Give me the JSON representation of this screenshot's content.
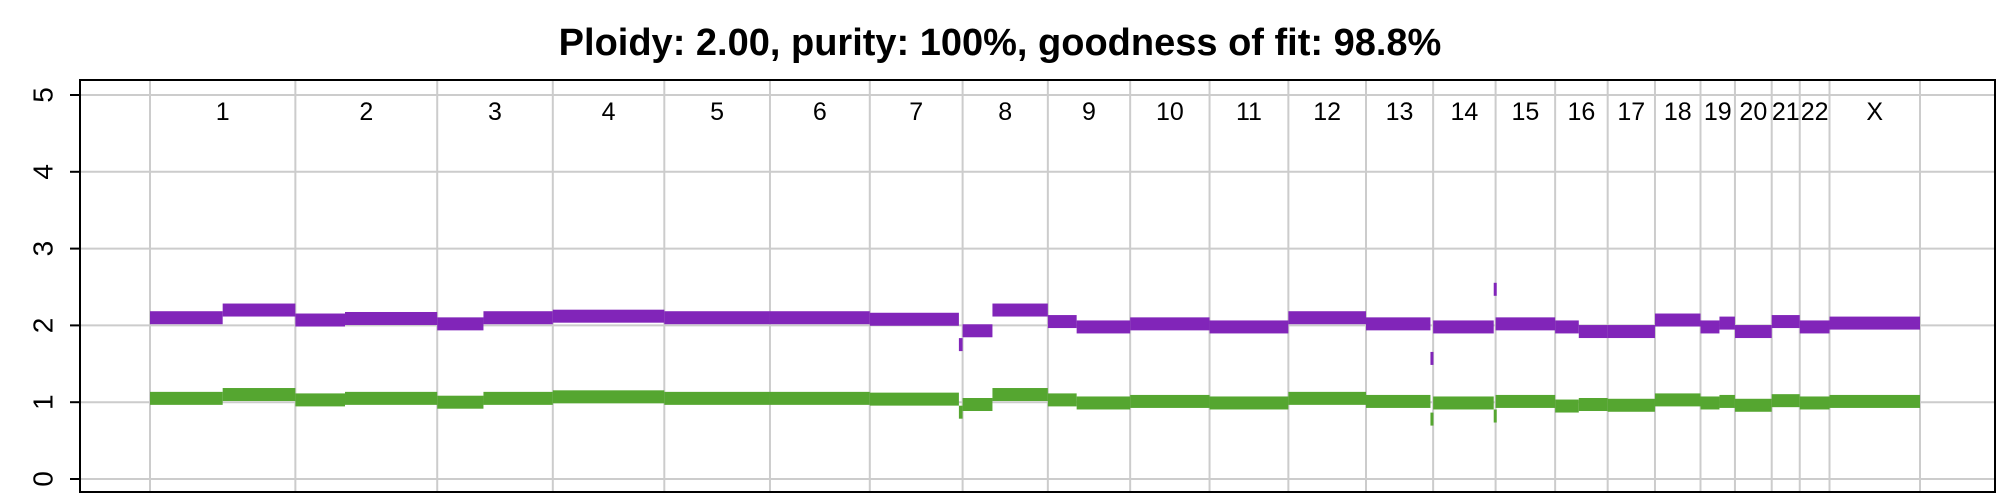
{
  "chart_data": {
    "type": "line",
    "title": "Ploidy: 2.00, purity: 100%, goodness of fit: 98.8%",
    "xlabel": "",
    "ylabel": "",
    "ylim": [
      0,
      5
    ],
    "yticks": [
      "0",
      "1",
      "2",
      "3",
      "4",
      "5"
    ],
    "grid": true,
    "colors": {
      "major": "#8125b9",
      "minor": "#55a630",
      "grid": "#cccccc",
      "frame": "#000000"
    },
    "chromosomes": [
      "1",
      "2",
      "3",
      "4",
      "5",
      "6",
      "7",
      "8",
      "9",
      "10",
      "11",
      "12",
      "13",
      "14",
      "15",
      "16",
      "17",
      "18",
      "19",
      "20",
      "21",
      "22",
      "X"
    ],
    "chromosome_widths": [
      249,
      243,
      198,
      191,
      181,
      171,
      159,
      146,
      141,
      136,
      135,
      133,
      115,
      107,
      102,
      90,
      81,
      78,
      59,
      63,
      48,
      51,
      155
    ],
    "series": [
      {
        "name": "",
        "role": "major",
        "segments": [
          {
            "chr": "1",
            "start": 0,
            "end": 0.5,
            "cn": 2.1
          },
          {
            "chr": "1",
            "start": 0.5,
            "end": 1,
            "cn": 2.2
          },
          {
            "chr": "2",
            "start": 0,
            "end": 0.35,
            "cn": 2.07
          },
          {
            "chr": "2",
            "start": 0.35,
            "end": 1,
            "cn": 2.09
          },
          {
            "chr": "3",
            "start": 0,
            "end": 0.4,
            "cn": 2.02
          },
          {
            "chr": "3",
            "start": 0.4,
            "end": 1,
            "cn": 2.1
          },
          {
            "chr": "4",
            "start": 0,
            "end": 1,
            "cn": 2.12
          },
          {
            "chr": "5",
            "start": 0,
            "end": 1,
            "cn": 2.1
          },
          {
            "chr": "6",
            "start": 0,
            "end": 1,
            "cn": 2.1
          },
          {
            "chr": "7",
            "start": 0,
            "end": 0.96,
            "cn": 2.08
          },
          {
            "chr": "7",
            "start": 0.96,
            "end": 1,
            "cn": 1.75
          },
          {
            "chr": "8",
            "start": 0,
            "end": 0.35,
            "cn": 1.93
          },
          {
            "chr": "8",
            "start": 0.35,
            "end": 1,
            "cn": 2.2
          },
          {
            "chr": "9",
            "start": 0,
            "end": 0.35,
            "cn": 2.05
          },
          {
            "chr": "9",
            "start": 0.35,
            "end": 1,
            "cn": 1.98
          },
          {
            "chr": "10",
            "start": 0,
            "end": 1,
            "cn": 2.02
          },
          {
            "chr": "11",
            "start": 0,
            "end": 1,
            "cn": 1.98
          },
          {
            "chr": "12",
            "start": 0,
            "end": 1,
            "cn": 2.1
          },
          {
            "chr": "13",
            "start": 0,
            "end": 0.96,
            "cn": 2.02
          },
          {
            "chr": "13",
            "start": 0.96,
            "end": 1,
            "cn": 1.57
          },
          {
            "chr": "14",
            "start": 0,
            "end": 0.97,
            "cn": 1.98
          },
          {
            "chr": "14",
            "start": 0.97,
            "end": 1,
            "cn": 2.47
          },
          {
            "chr": "15",
            "start": 0,
            "end": 1,
            "cn": 2.02
          },
          {
            "chr": "16",
            "start": 0,
            "end": 0.45,
            "cn": 1.98
          },
          {
            "chr": "16",
            "start": 0.45,
            "end": 1,
            "cn": 1.92
          },
          {
            "chr": "17",
            "start": 0,
            "end": 1,
            "cn": 1.92
          },
          {
            "chr": "18",
            "start": 0,
            "end": 1,
            "cn": 2.07
          },
          {
            "chr": "19",
            "start": 0,
            "end": 0.55,
            "cn": 1.98
          },
          {
            "chr": "19",
            "start": 0.55,
            "end": 1,
            "cn": 2.03
          },
          {
            "chr": "20",
            "start": 0,
            "end": 1,
            "cn": 1.92
          },
          {
            "chr": "21",
            "start": 0,
            "end": 1,
            "cn": 2.05
          },
          {
            "chr": "22",
            "start": 0,
            "end": 1,
            "cn": 1.98
          },
          {
            "chr": "X",
            "start": 0,
            "end": 1,
            "cn": 2.03
          }
        ]
      },
      {
        "name": "",
        "role": "minor",
        "segments": [
          {
            "chr": "1",
            "start": 0,
            "end": 0.5,
            "cn": 1.05
          },
          {
            "chr": "1",
            "start": 0.5,
            "end": 1,
            "cn": 1.1
          },
          {
            "chr": "2",
            "start": 0,
            "end": 0.35,
            "cn": 1.03
          },
          {
            "chr": "2",
            "start": 0.35,
            "end": 1,
            "cn": 1.05
          },
          {
            "chr": "3",
            "start": 0,
            "end": 0.4,
            "cn": 1.0
          },
          {
            "chr": "3",
            "start": 0.4,
            "end": 1,
            "cn": 1.05
          },
          {
            "chr": "4",
            "start": 0,
            "end": 1,
            "cn": 1.07
          },
          {
            "chr": "5",
            "start": 0,
            "end": 1,
            "cn": 1.05
          },
          {
            "chr": "6",
            "start": 0,
            "end": 1,
            "cn": 1.05
          },
          {
            "chr": "7",
            "start": 0,
            "end": 0.96,
            "cn": 1.04
          },
          {
            "chr": "7",
            "start": 0.96,
            "end": 1,
            "cn": 0.87
          },
          {
            "chr": "8",
            "start": 0,
            "end": 0.35,
            "cn": 0.97
          },
          {
            "chr": "8",
            "start": 0.35,
            "end": 1,
            "cn": 1.1
          },
          {
            "chr": "9",
            "start": 0,
            "end": 0.35,
            "cn": 1.03
          },
          {
            "chr": "9",
            "start": 0.35,
            "end": 1,
            "cn": 0.99
          },
          {
            "chr": "10",
            "start": 0,
            "end": 1,
            "cn": 1.01
          },
          {
            "chr": "11",
            "start": 0,
            "end": 1,
            "cn": 0.99
          },
          {
            "chr": "12",
            "start": 0,
            "end": 1,
            "cn": 1.05
          },
          {
            "chr": "13",
            "start": 0,
            "end": 0.96,
            "cn": 1.01
          },
          {
            "chr": "13",
            "start": 0.96,
            "end": 1,
            "cn": 0.78
          },
          {
            "chr": "14",
            "start": 0,
            "end": 0.97,
            "cn": 0.99
          },
          {
            "chr": "14",
            "start": 0.97,
            "end": 1,
            "cn": 0.82
          },
          {
            "chr": "15",
            "start": 0,
            "end": 1,
            "cn": 1.01
          },
          {
            "chr": "16",
            "start": 0,
            "end": 0.45,
            "cn": 0.95
          },
          {
            "chr": "16",
            "start": 0.45,
            "end": 1,
            "cn": 0.97
          },
          {
            "chr": "17",
            "start": 0,
            "end": 1,
            "cn": 0.96
          },
          {
            "chr": "18",
            "start": 0,
            "end": 1,
            "cn": 1.03
          },
          {
            "chr": "19",
            "start": 0,
            "end": 0.55,
            "cn": 0.99
          },
          {
            "chr": "19",
            "start": 0.55,
            "end": 1,
            "cn": 1.01
          },
          {
            "chr": "20",
            "start": 0,
            "end": 1,
            "cn": 0.96
          },
          {
            "chr": "21",
            "start": 0,
            "end": 1,
            "cn": 1.02
          },
          {
            "chr": "22",
            "start": 0,
            "end": 1,
            "cn": 0.99
          },
          {
            "chr": "X",
            "start": 0,
            "end": 1,
            "cn": 1.01
          }
        ]
      }
    ]
  }
}
